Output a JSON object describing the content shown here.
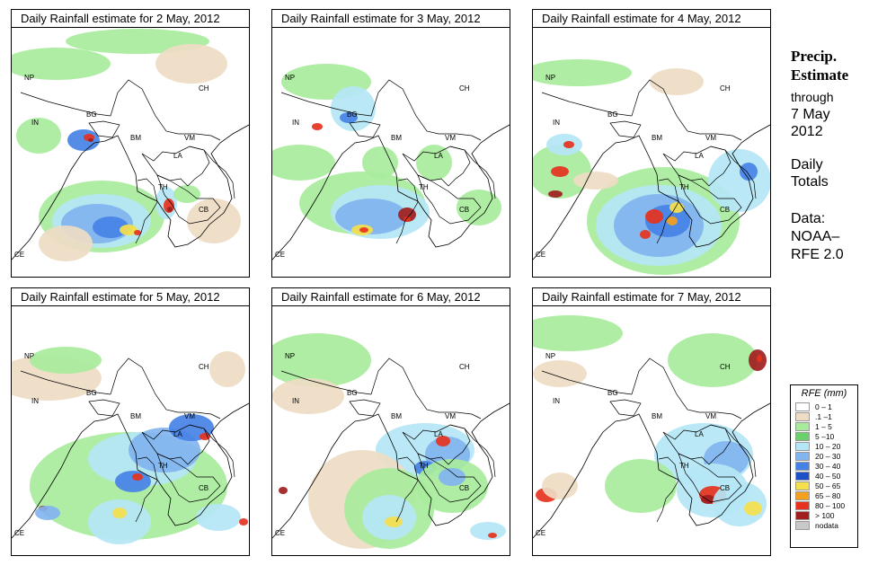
{
  "panels": [
    {
      "title": "Daily Rainfall estimate for  2 May, 2012"
    },
    {
      "title": "Daily Rainfall estimate for  3 May, 2012"
    },
    {
      "title": "Daily Rainfall estimate for  4 May, 2012"
    },
    {
      "title": "Daily Rainfall estimate for  5 May, 2012"
    },
    {
      "title": "Daily Rainfall estimate for  6 May, 2012"
    },
    {
      "title": "Daily Rainfall estimate for  7 May, 2012"
    }
  ],
  "countries": {
    "np": "NP",
    "ch": "CH",
    "in": "IN",
    "bg": "BG",
    "bm": "BM",
    "vm": "VM",
    "la": "LA",
    "th": "TH",
    "cb": "CB",
    "ce": "CE"
  },
  "side": {
    "heading_line1": "Precip.",
    "heading_line2": "Estimate",
    "through": "through",
    "date_line1": "7 May",
    "date_line2": "2012",
    "daily_line1": "Daily",
    "daily_line2": "Totals",
    "source_line1": "Data:",
    "source_line2": "NOAA–",
    "source_line3": "RFE 2.0"
  },
  "legend": {
    "title": "RFE (mm)",
    "items": [
      {
        "label": "0 – 1",
        "color": "#ffffff"
      },
      {
        "label": ".1 –1",
        "color": "#eedcc4"
      },
      {
        "label": "1 – 5",
        "color": "#a8eb9c"
      },
      {
        "label": "5 –10",
        "color": "#6bd06b"
      },
      {
        "label": "10 – 20",
        "color": "#b4e6f5"
      },
      {
        "label": "20 – 30",
        "color": "#82b4f0"
      },
      {
        "label": "30 – 40",
        "color": "#4682e6"
      },
      {
        "label": "40 – 50",
        "color": "#1e50c8"
      },
      {
        "label": "50 – 65",
        "color": "#f5e04c"
      },
      {
        "label": "65 – 80",
        "color": "#f5a01e"
      },
      {
        "label": "80 – 100",
        "color": "#e6321e"
      },
      {
        "label": "> 100",
        "color": "#a01e1e"
      },
      {
        "label": "nodata",
        "color": "#c8c8c8"
      }
    ]
  }
}
